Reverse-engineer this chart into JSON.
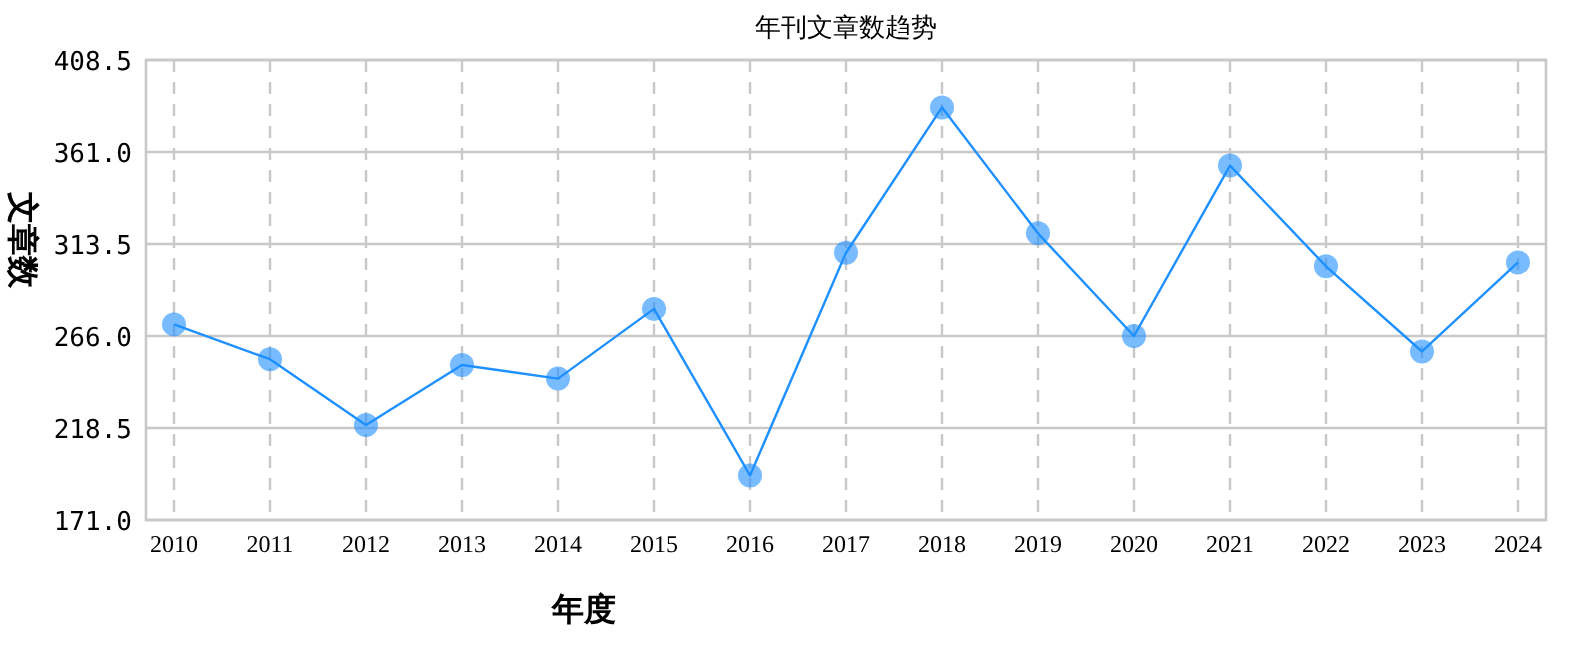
{
  "chart_data": {
    "type": "line",
    "title": "年刊文章数趋势",
    "xlabel": "年度",
    "ylabel": "文章数",
    "categories": [
      "2010",
      "2011",
      "2012",
      "2013",
      "2014",
      "2015",
      "2016",
      "2017",
      "2018",
      "2019",
      "2020",
      "2021",
      "2022",
      "2023",
      "2024"
    ],
    "series": [
      {
        "color": "#1e90ff",
        "values": [
          272,
          254,
          220,
          251,
          244,
          280,
          194,
          309,
          384,
          319,
          266,
          354,
          302,
          258,
          304
        ]
      }
    ],
    "ylim": [
      171.0,
      408.5
    ],
    "yticks": [
      {
        "value": 171.0,
        "label": "171.0"
      },
      {
        "value": 218.5,
        "label": "218.5"
      },
      {
        "value": 266.0,
        "label": "266.0"
      },
      {
        "value": 313.5,
        "label": "313.5"
      },
      {
        "value": 361.0,
        "label": "361.0"
      },
      {
        "value": 408.5,
        "label": "408.5"
      }
    ],
    "grid": true,
    "marker": "circle",
    "line_style": "solid"
  }
}
